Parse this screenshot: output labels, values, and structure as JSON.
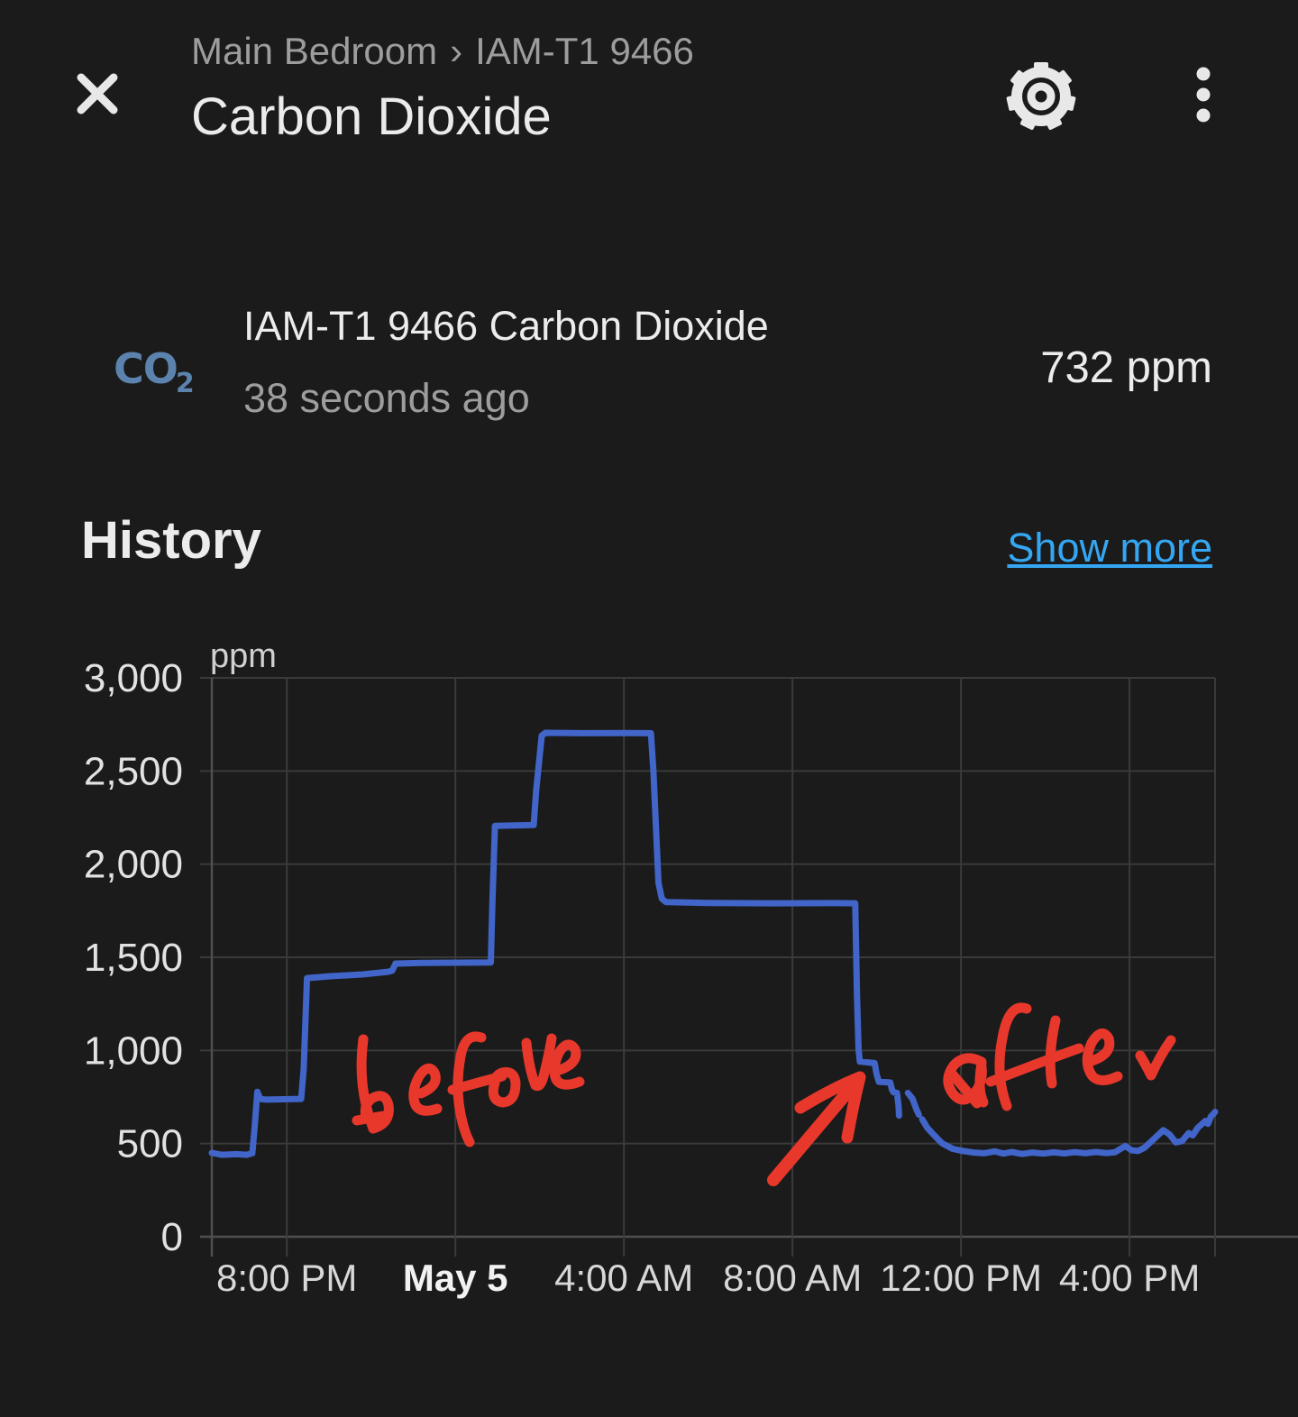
{
  "colors": {
    "background": "#1b1b1b",
    "primary_text": "#ebebeb",
    "secondary_text": "#9d9d9d",
    "accent_link": "#35a7f2",
    "line_blue": "#4165c8",
    "co2_icon_blue": "#5b83ad",
    "annotation_red": "#e8382c",
    "gridline": "#3a3a3a",
    "axis_line": "#4f4f4f"
  },
  "header": {
    "breadcrumb_location": "Main Bedroom",
    "breadcrumb_separator": "›",
    "breadcrumb_device": "IAM-T1 9466",
    "title": "Carbon Dioxide"
  },
  "sensor": {
    "icon_text_main": "CO",
    "icon_text_sub": "2",
    "name": "IAM-T1 9466 Carbon Dioxide",
    "last_updated": "38 seconds ago",
    "value": "732 ppm"
  },
  "history": {
    "heading": "History",
    "show_more": "Show more"
  },
  "annotations": {
    "before_label": "before",
    "after_label": "after",
    "arrow_note": "hand-drawn arrow pointing at the CO2 drop after 8:00 AM",
    "color": "#e8382c"
  },
  "chart_data": {
    "type": "line",
    "title": "History",
    "unit": "ppm",
    "ylabel": "ppm",
    "xlabel": "",
    "grid": true,
    "legend": "none",
    "ylim": [
      0,
      3000
    ],
    "x_note": "x values are hours relative to May 5 00:00 (negative = May 4 evening)",
    "x_range_hours": [
      -5.78,
      18.03
    ],
    "y_ticks": [
      {
        "v": 0,
        "label": "0"
      },
      {
        "v": 500,
        "label": "500"
      },
      {
        "v": 1000,
        "label": "1,000"
      },
      {
        "v": 1500,
        "label": "1,500"
      },
      {
        "v": 2000,
        "label": "2,000"
      },
      {
        "v": 2500,
        "label": "2,500"
      },
      {
        "v": 3000,
        "label": "3,000"
      }
    ],
    "x_ticks": [
      {
        "h": -4,
        "label": "8:00 PM",
        "bold": false
      },
      {
        "h": 0,
        "label": "May 5",
        "bold": true
      },
      {
        "h": 4,
        "label": "4:00 AM",
        "bold": false
      },
      {
        "h": 8,
        "label": "8:00 AM",
        "bold": false
      },
      {
        "h": 12,
        "label": "12:00 PM",
        "bold": false
      },
      {
        "h": 16,
        "label": "4:00 PM",
        "bold": false
      }
    ],
    "series": [
      {
        "name": "IAM-T1 9466 Carbon Dioxide",
        "color": "#4165c8",
        "points": [
          [
            -5.78,
            450
          ],
          [
            -5.55,
            440
          ],
          [
            -5.2,
            443
          ],
          [
            -4.95,
            440
          ],
          [
            -4.82,
            448
          ],
          [
            -4.76,
            600
          ],
          [
            -4.7,
            778
          ],
          [
            -4.63,
            740
          ],
          [
            -4.5,
            736
          ],
          [
            -3.66,
            740
          ],
          [
            -3.6,
            900
          ],
          [
            -3.52,
            1388
          ],
          [
            -3.0,
            1398
          ],
          [
            -2.2,
            1408
          ],
          [
            -1.6,
            1422
          ],
          [
            -1.5,
            1428
          ],
          [
            -1.42,
            1466
          ],
          [
            -0.8,
            1470
          ],
          [
            0.0,
            1471
          ],
          [
            0.84,
            1472
          ],
          [
            0.88,
            1800
          ],
          [
            0.94,
            2205
          ],
          [
            1.4,
            2208
          ],
          [
            1.86,
            2210
          ],
          [
            1.92,
            2400
          ],
          [
            2.05,
            2690
          ],
          [
            2.14,
            2705
          ],
          [
            3.0,
            2703
          ],
          [
            4.0,
            2704
          ],
          [
            4.64,
            2703
          ],
          [
            4.7,
            2500
          ],
          [
            4.82,
            1900
          ],
          [
            4.9,
            1815
          ],
          [
            5.0,
            1796
          ],
          [
            6.0,
            1792
          ],
          [
            7.5,
            1790
          ],
          [
            9.0,
            1791
          ],
          [
            9.49,
            1790
          ],
          [
            9.53,
            1300
          ],
          [
            9.57,
            1005
          ],
          [
            9.6,
            940
          ],
          [
            9.95,
            932
          ],
          [
            10.0,
            870
          ],
          [
            10.05,
            832
          ],
          [
            10.32,
            828
          ],
          [
            10.36,
            790
          ],
          [
            10.4,
            775
          ],
          [
            10.48,
            772
          ],
          [
            10.52,
            700
          ],
          [
            10.53,
            650
          ],
          null,
          [
            10.74,
            772
          ],
          [
            10.85,
            740
          ],
          [
            10.95,
            680
          ],
          [
            11.0,
            655
          ],
          null,
          [
            11.08,
            630
          ],
          [
            11.2,
            585
          ],
          [
            11.35,
            548
          ],
          [
            11.55,
            502
          ],
          [
            11.8,
            472
          ],
          [
            12.05,
            460
          ],
          [
            12.3,
            452
          ],
          [
            12.55,
            448
          ],
          [
            12.8,
            458
          ],
          [
            13.0,
            446
          ],
          [
            13.2,
            455
          ],
          [
            13.45,
            444
          ],
          [
            13.7,
            452
          ],
          [
            13.95,
            446
          ],
          [
            14.2,
            453
          ],
          [
            14.45,
            447
          ],
          [
            14.7,
            454
          ],
          [
            14.95,
            448
          ],
          [
            15.2,
            455
          ],
          [
            15.45,
            449
          ],
          [
            15.65,
            453
          ],
          [
            15.9,
            487
          ],
          [
            16.05,
            464
          ],
          [
            16.2,
            460
          ],
          [
            16.35,
            477
          ],
          [
            16.5,
            508
          ],
          [
            16.65,
            540
          ],
          [
            16.8,
            572
          ],
          [
            16.95,
            549
          ],
          [
            17.1,
            506
          ],
          [
            17.25,
            514
          ],
          [
            17.4,
            556
          ],
          [
            17.5,
            544
          ],
          [
            17.62,
            585
          ],
          [
            17.72,
            605
          ],
          [
            17.8,
            622
          ],
          [
            17.86,
            606
          ],
          [
            17.93,
            645
          ],
          [
            18.0,
            662
          ],
          [
            18.03,
            670
          ]
        ]
      }
    ]
  }
}
